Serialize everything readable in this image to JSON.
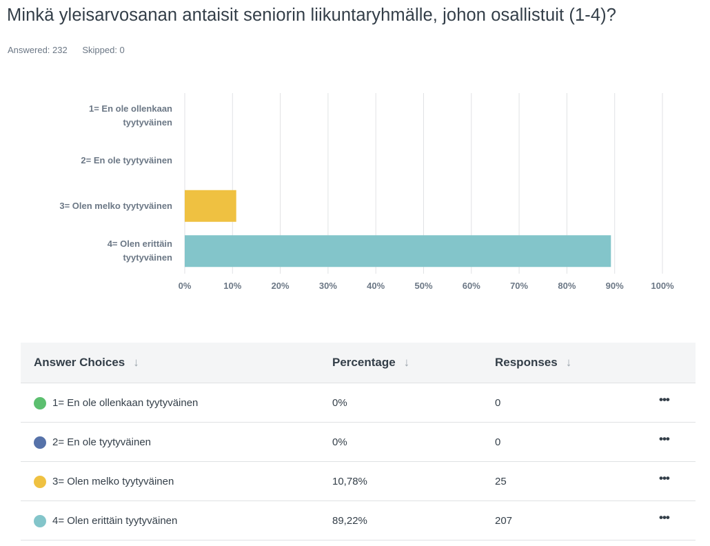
{
  "question": {
    "title": "Minkä yleisarvosanan antaisit seniorin liikuntaryhmälle, johon osallistuit (1-4)?",
    "answered": "Answered: 232",
    "skipped": "Skipped: 0"
  },
  "colors": {
    "choice1": "#5cbf6f",
    "choice2": "#5672a9",
    "choice3": "#efc141",
    "choice4": "#83c5ca",
    "grid": "#e0e2e4"
  },
  "chart_data": {
    "type": "bar",
    "orientation": "horizontal",
    "categories": [
      [
        "1= En ole ollenkaan",
        "tyytyväinen"
      ],
      [
        "2= En ole tyytyväinen"
      ],
      [
        "3= Olen melko tyytyväinen"
      ],
      [
        "4= Olen erittäin",
        "tyytyväinen"
      ]
    ],
    "values": [
      0,
      0,
      10.78,
      89.22
    ],
    "bar_colors": [
      "#5cbf6f",
      "#5672a9",
      "#efc141",
      "#83c5ca"
    ],
    "xlim": [
      0,
      100
    ],
    "xticks": [
      "0%",
      "10%",
      "20%",
      "30%",
      "40%",
      "50%",
      "60%",
      "70%",
      "80%",
      "90%",
      "100%"
    ],
    "grid": true
  },
  "table": {
    "headers": {
      "choices": "Answer Choices",
      "percentage": "Percentage",
      "responses": "Responses"
    },
    "sort_icon": "↓",
    "more_icon": "•••",
    "rows": [
      {
        "label": "1= En ole ollenkaan tyytyväinen",
        "percentage": "0%",
        "responses": "0",
        "color": "#5cbf6f"
      },
      {
        "label": "2= En ole tyytyväinen",
        "percentage": "0%",
        "responses": "0",
        "color": "#5672a9"
      },
      {
        "label": "3= Olen melko tyytyväinen",
        "percentage": "10,78%",
        "responses": "25",
        "color": "#efc141"
      },
      {
        "label": "4= Olen erittäin tyytyväinen",
        "percentage": "89,22%",
        "responses": "207",
        "color": "#83c5ca"
      }
    ]
  }
}
